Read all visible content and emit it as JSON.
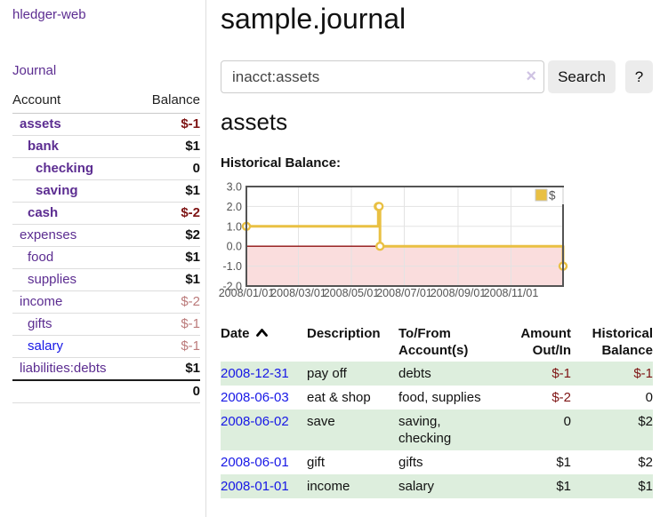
{
  "sidebar": {
    "app_title": "hledger-web",
    "journal_link": "Journal",
    "table": {
      "headers": {
        "account": "Account",
        "balance": "Balance"
      },
      "rows": [
        {
          "account": "assets",
          "indent": 1,
          "bold": true,
          "link": "purple",
          "balance": "$-1",
          "tone": "neg-strong"
        },
        {
          "account": "bank",
          "indent": 2,
          "bold": true,
          "link": "purple",
          "balance": "$1",
          "tone": null
        },
        {
          "account": "checking",
          "indent": 3,
          "bold": true,
          "link": "purple",
          "balance": "0",
          "tone": null
        },
        {
          "account": "saving",
          "indent": 3,
          "bold": true,
          "link": "purple",
          "balance": "$1",
          "tone": null
        },
        {
          "account": "cash",
          "indent": 2,
          "bold": true,
          "link": "purple",
          "balance": "$-2",
          "tone": "neg-strong"
        },
        {
          "account": "expenses",
          "indent": 1,
          "bold": false,
          "link": "purple",
          "balance": "$2",
          "tone": null
        },
        {
          "account": "food",
          "indent": 2,
          "bold": false,
          "link": "purple",
          "balance": "$1",
          "tone": null
        },
        {
          "account": "supplies",
          "indent": 2,
          "bold": false,
          "link": "purple",
          "balance": "$1",
          "tone": null
        },
        {
          "account": "income",
          "indent": 1,
          "bold": false,
          "link": "purple",
          "balance": "$-2",
          "tone": "neg-soft"
        },
        {
          "account": "gifts",
          "indent": 2,
          "bold": false,
          "link": "purple",
          "balance": "$-1",
          "tone": "neg-soft"
        },
        {
          "account": "salary",
          "indent": 2,
          "bold": false,
          "link": "blue",
          "balance": "$-1",
          "tone": "neg-soft"
        },
        {
          "account": "liabilities:debts",
          "indent": 1,
          "bold": false,
          "link": "purple",
          "balance": "$1",
          "tone": null
        }
      ],
      "total": "0"
    }
  },
  "header": {
    "title": "sample.journal"
  },
  "search": {
    "value": "inacct:assets",
    "clear_icon": "×",
    "button": "Search",
    "help": "?"
  },
  "account_page": {
    "heading": "assets",
    "chart_title": "Historical Balance:"
  },
  "chart_data": {
    "type": "line",
    "step": true,
    "title": "Historical Balance",
    "series": [
      {
        "name": "$",
        "points": [
          [
            "2008-01-01",
            1
          ],
          [
            "2008-06-01",
            2
          ],
          [
            "2008-06-02",
            2
          ],
          [
            "2008-06-03",
            0
          ],
          [
            "2008-12-31",
            -1
          ]
        ]
      }
    ],
    "x_range": [
      "2008-01-01",
      "2008-12-31"
    ],
    "ylim": [
      -2,
      3
    ],
    "yticks": [
      3,
      2,
      1,
      0,
      -1,
      -2
    ],
    "ytick_labels": [
      "3.0",
      "2.0",
      "1.0",
      "0.0",
      "-1.0",
      "-2.0"
    ],
    "xticks": [
      "2008/01/01",
      "2008/03/01",
      "2008/05/01",
      "2008/07/01",
      "2008/09/01",
      "2008/11/01"
    ],
    "legend": {
      "label": "$",
      "position": "top-right"
    },
    "grid": true,
    "negative_region": true
  },
  "register": {
    "columns": [
      {
        "label": "Date",
        "align": "left",
        "sorted": "asc"
      },
      {
        "label": "Description",
        "align": "left"
      },
      {
        "label": "To/From Account(s)",
        "align": "left"
      },
      {
        "label": "Amount Out/In",
        "align": "right"
      },
      {
        "label": "Historical Balance",
        "align": "right"
      }
    ],
    "rows": [
      {
        "date": "2008-12-31",
        "description": "pay off",
        "accounts": "debts",
        "amount": "$-1",
        "amount_negative": true,
        "balance": "$-1",
        "balance_negative": true
      },
      {
        "date": "2008-06-03",
        "description": "eat & shop",
        "accounts": "food, supplies",
        "amount": "$-2",
        "amount_negative": true,
        "balance": "0",
        "balance_negative": false
      },
      {
        "date": "2008-06-02",
        "description": "save",
        "accounts": "saving, checking",
        "amount": "0",
        "amount_negative": false,
        "balance": "$2",
        "balance_negative": false
      },
      {
        "date": "2008-06-01",
        "description": "gift",
        "accounts": "gifts",
        "amount": "$1",
        "amount_negative": false,
        "balance": "$2",
        "balance_negative": false
      },
      {
        "date": "2008-01-01",
        "description": "income",
        "accounts": "salary",
        "amount": "$1",
        "amount_negative": false,
        "balance": "$1",
        "balance_negative": false
      }
    ]
  },
  "colors": {
    "link_purple": "#5c2d91",
    "link_blue": "#1717e6",
    "negative_strong": "#7e1414",
    "negative_soft": "#bb7a7a",
    "row_green": "#ddeedd",
    "chart_line": "#e9c043",
    "chart_negative_fill": "#fadddd",
    "chart_zero_line": "#8f1010",
    "chart_border": "#545454",
    "chart_grid": "#e3e3e3",
    "chart_tick_text": "#545454"
  }
}
